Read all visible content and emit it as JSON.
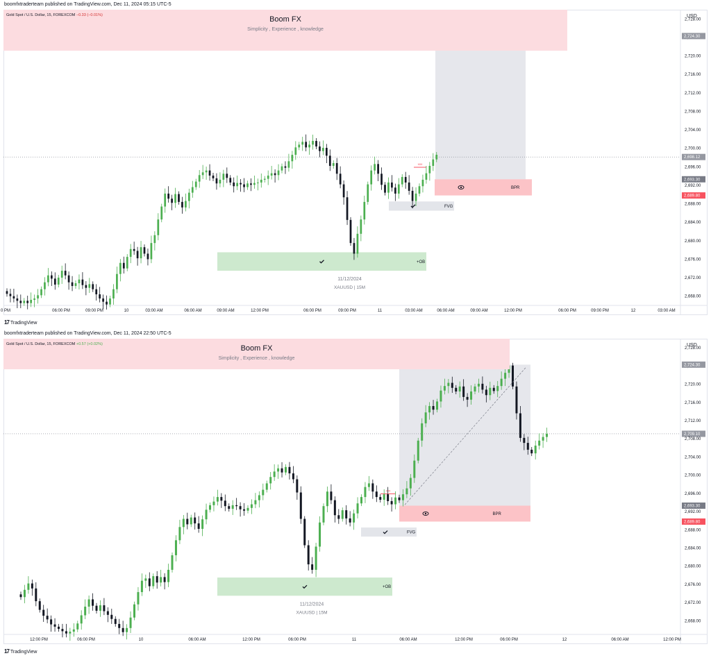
{
  "panels": [
    {
      "published": "boomfxtraderteam published on TradingView.com, Dec 11, 2024 05:15 UTC-5",
      "symbol": "Gold Spot / U.S. Dollar, 15, FOREXCOM",
      "change": "−0.33 (−0.01%)",
      "change_dir": "down",
      "banner_title": "Boom FX",
      "banner_subtitle": "Simplicity , Experience , knowledge",
      "currency": "USD",
      "watermark_date": "11/12/2024",
      "watermark_symbol": "XAUUSD | 15M",
      "brand": "TradingView",
      "tick_labels_x": [
        "0 PM",
        "06:00 PM",
        "09:00 PM",
        "10",
        "03:00 AM",
        "06:00 AM",
        "09:00 AM",
        "12:00 PM",
        "06:00 PM",
        "09:00 PM",
        "11",
        "03:00 AM",
        "06:00 AM",
        "09:00 AM",
        "12:00 PM",
        "06:00 PM",
        "09:00 PM",
        "12",
        "03:00 AM"
      ],
      "price_tags": [
        {
          "label": "2,724.30",
          "color": "#9598a1"
        },
        {
          "label": "2,698.12",
          "color": "#9598a1"
        },
        {
          "label": "2,693.30",
          "color": "#787b86"
        },
        {
          "label": "2,689.80",
          "color": "#f7525f"
        }
      ],
      "zones": [
        {
          "label": "+OB",
          "type": "ob"
        },
        {
          "label": "FVG",
          "type": "fvg"
        },
        {
          "label": "BPR",
          "type": "bpr"
        },
        {
          "label": "xxx",
          "type": "sweep"
        }
      ],
      "chart_data": {
        "type": "candlestick",
        "y_ticks": [
          2668,
          2672,
          2676,
          2680,
          2684,
          2688,
          2692,
          2696,
          2700,
          2704,
          2708,
          2712,
          2716,
          2720,
          2724,
          2728
        ],
        "ylim": [
          2666,
          2730
        ],
        "last_price": 2698.12,
        "ob_zone": [
          2673.5,
          2677.5
        ],
        "fvg_zone": [
          2686.5,
          2688.5
        ],
        "bpr_zone": [
          2689.8,
          2693.3
        ],
        "target_zone": [
          2693.3,
          2724.3
        ],
        "closes": [
          2668.5,
          2668,
          2667.5,
          2667,
          2666.5,
          2667,
          2666.5,
          2667.2,
          2667.5,
          2668.2,
          2669.5,
          2671,
          2672.5,
          2671.8,
          2670.5,
          2672,
          2673.5,
          2672.5,
          2671,
          2670.2,
          2670.8,
          2671.6,
          2670.4,
          2669.8,
          2670.6,
          2669.5,
          2668.4,
          2667.5,
          2666.8,
          2666.2,
          2667.5,
          2669.5,
          2672.8,
          2675.2,
          2674,
          2676.5,
          2678.2,
          2677.8,
          2676.2,
          2678.6,
          2677.2,
          2676,
          2679.5,
          2681.2,
          2684.6,
          2687.4,
          2690.2,
          2689.1,
          2688.2,
          2690.1,
          2688.4,
          2687.2,
          2688.6,
          2690.4,
          2691.6,
          2692.8,
          2694.2,
          2694.8,
          2695.2,
          2694.1,
          2693.5,
          2692.4,
          2693.2,
          2694.5,
          2693.6,
          2692.6,
          2691.8,
          2692.5,
          2692.2,
          2691.6,
          2692.4,
          2692.1,
          2692.5,
          2692.6,
          2693.2,
          2693.4,
          2694.1,
          2694.6,
          2694.2,
          2695.2,
          2696.1,
          2695.8,
          2697.2,
          2698.6,
          2700.2,
          2700.8,
          2701.4,
          2700.2,
          2700.8,
          2701.6,
          2700.4,
          2699.4,
          2700.1,
          2698.4,
          2696.2,
          2696.8,
          2694.5,
          2692.2,
          2689.4,
          2684.5,
          2679.5,
          2677.2,
          2681.5,
          2684.6,
          2688.4,
          2692.2,
          2695.2,
          2696.6,
          2694.5,
          2692.1,
          2690.4,
          2692.6,
          2691.5,
          2690.2,
          2692.2,
          2693.8,
          2692.6,
          2690.8,
          2688.6,
          2690.2,
          2691.8,
          2693.2,
          2694.6,
          2696.2,
          2697.6,
          2698.6
        ]
      }
    },
    {
      "published": "boomfxtraderteam published on TradingView.com, Dec 11, 2024 22:50 UTC-5",
      "symbol": "Gold Spot / U.S. Dollar, 15, FOREXCOM",
      "change": "+0.57 (+0.02%)",
      "change_dir": "up",
      "banner_title": "Boom FX",
      "banner_subtitle": "Simplicity , Experience , knowledge",
      "currency": "USD",
      "watermark_date": "11/12/2024",
      "watermark_symbol": "XAUUSD | 15M",
      "brand": "TradingView",
      "tick_labels_x": [
        "12:00 PM",
        "06:00 PM",
        "10",
        "06:00 AM",
        "12:00 PM",
        "06:00 PM",
        "11",
        "06:00 AM",
        "12:00 PM",
        "06:00 PM",
        "12",
        "06:00 AM",
        "12:00 PM"
      ],
      "price_tags": [
        {
          "label": "2,724.30",
          "color": "#9598a1"
        },
        {
          "label": "2,709.10",
          "color": "#9598a1"
        },
        {
          "label": "2,693.30",
          "color": "#787b86"
        },
        {
          "label": "2,689.80",
          "color": "#f7525f"
        }
      ],
      "zones": [
        {
          "label": "+OB",
          "type": "ob"
        },
        {
          "label": "FVG",
          "type": "fvg"
        },
        {
          "label": "BPR",
          "type": "bpr"
        },
        {
          "label": "xxx",
          "type": "sweep"
        }
      ],
      "chart_data": {
        "type": "candlestick",
        "y_ticks": [
          2668,
          2672,
          2676,
          2680,
          2684,
          2688,
          2692,
          2696,
          2700,
          2704,
          2708,
          2712,
          2716,
          2720,
          2724,
          2728
        ],
        "ylim": [
          2665,
          2730
        ],
        "last_price": 2709.1,
        "ob_zone": [
          2673.5,
          2677.5
        ],
        "fvg_zone": [
          2686.5,
          2688.5
        ],
        "bpr_zone": [
          2689.8,
          2693.3
        ],
        "target_zone": [
          2693.3,
          2724.3
        ],
        "closes": [
          2673.2,
          2674.8,
          2676.2,
          2675.1,
          2672.3,
          2670.4,
          2669.1,
          2668.3,
          2667.2,
          2666.7,
          2666.2,
          2665.7,
          2665.2,
          2665.6,
          2666.1,
          2667.4,
          2669.2,
          2671.1,
          2672.7,
          2671.3,
          2670.2,
          2671.4,
          2670.1,
          2669.3,
          2668.4,
          2667.3,
          2666.4,
          2665.5,
          2666.4,
          2668.7,
          2671.6,
          2674.3,
          2676.8,
          2677.3,
          2675.6,
          2677.8,
          2676.4,
          2677.6,
          2676.5,
          2679.2,
          2682.4,
          2685.7,
          2688.6,
          2690.4,
          2689.2,
          2690.7,
          2689.4,
          2688.2,
          2690.3,
          2692.4,
          2693.4,
          2694.2,
          2695.2,
          2694.4,
          2693.2,
          2692.6,
          2693.4,
          2693.2,
          2692.5,
          2692.2,
          2692.8,
          2693.6,
          2694.5,
          2695.6,
          2696.8,
          2698.2,
          2699.6,
          2700.8,
          2701.5,
          2700.6,
          2701.8,
          2700.4,
          2699.1,
          2696.2,
          2690.4,
          2684.6,
          2680.4,
          2679.2,
          2684.3,
          2689.6,
          2693.2,
          2696.4,
          2694.5,
          2691.2,
          2690.4,
          2692.3,
          2690.5,
          2689.6,
          2691.6,
          2693.8,
          2695.2,
          2697.4,
          2698.2,
          2696.4,
          2695.2,
          2694.6,
          2695.8,
          2694.3,
          2693.6,
          2695.1,
          2694.5,
          2695.8,
          2697.1,
          2699.4,
          2703.2,
          2707.6,
          2711.4,
          2713.8,
          2715.2,
          2714.4,
          2716.2,
          2718.6,
          2719.6,
          2720.3,
          2719.2,
          2718.4,
          2719.5,
          2717.2,
          2716.6,
          2718.4,
          2719.5,
          2720.1,
          2718.8,
          2717.6,
          2719.2,
          2718.5,
          2719.6,
          2721.2,
          2722.5,
          2724.1,
          2719.5,
          2713.6,
          2708.2,
          2707.1,
          2705.6,
          2704.8,
          2706.5,
          2707.6,
          2708.4,
          2709.1
        ]
      }
    }
  ]
}
